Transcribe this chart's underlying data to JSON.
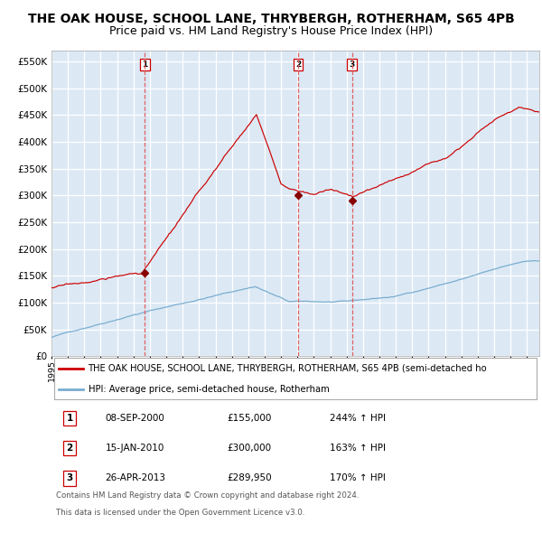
{
  "title": "THE OAK HOUSE, SCHOOL LANE, THRYBERGH, ROTHERHAM, S65 4PB",
  "subtitle": "Price paid vs. HM Land Registry's House Price Index (HPI)",
  "ylim": [
    0,
    570000
  ],
  "yticks": [
    0,
    50000,
    100000,
    150000,
    200000,
    250000,
    300000,
    350000,
    400000,
    450000,
    500000,
    550000
  ],
  "background_color": "#dce9f5",
  "grid_color": "#ffffff",
  "red_line_color": "#cc0000",
  "blue_line_color": "#7aadcf",
  "dashed_line_color": "#e06060",
  "marker_color": "#880000",
  "title_fontsize": 10,
  "subtitle_fontsize": 9,
  "transactions": [
    {
      "label": "1",
      "date_num": 2000.69,
      "price": 155000,
      "pct": "244%",
      "date_str": "08-SEP-2000",
      "price_str": "£155,000"
    },
    {
      "label": "2",
      "date_num": 2010.04,
      "price": 300000,
      "pct": "163%",
      "date_str": "15-JAN-2010",
      "price_str": "£300,000"
    },
    {
      "label": "3",
      "date_num": 2013.32,
      "price": 289950,
      "pct": "170%",
      "date_str": "26-APR-2013",
      "price_str": "£289,950"
    }
  ],
  "legend_property": "THE OAK HOUSE, SCHOOL LANE, THRYBERGH, ROTHERHAM, S65 4PB (semi-detached ho",
  "legend_hpi": "HPI: Average price, semi-detached house, Rotherham",
  "footer1": "Contains HM Land Registry data © Crown copyright and database right 2024.",
  "footer2": "This data is licensed under the Open Government Licence v3.0."
}
